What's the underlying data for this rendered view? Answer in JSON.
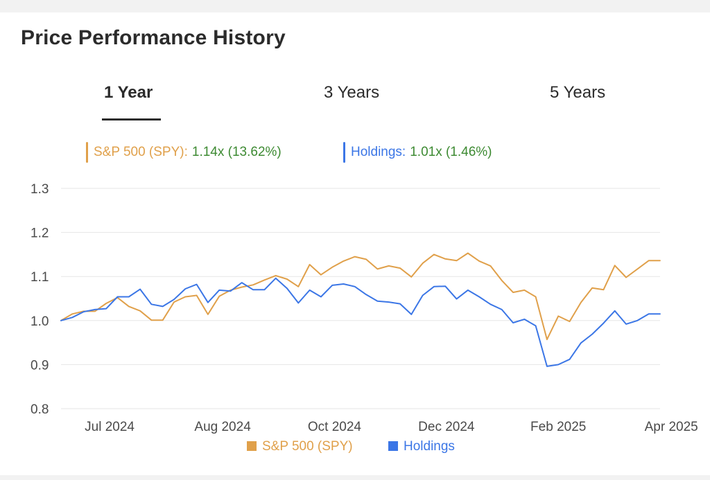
{
  "page": {
    "title": "Price Performance History"
  },
  "tabs": [
    {
      "label": "1 Year",
      "active": true
    },
    {
      "label": "3 Years",
      "active": false
    },
    {
      "label": "5 Years",
      "active": false
    }
  ],
  "summary": {
    "spy": {
      "label": "S&P 500 (SPY):",
      "value": "1.14x (13.62%)"
    },
    "holdings": {
      "label": "Holdings:",
      "value": "1.01x (1.46%)"
    }
  },
  "legend": {
    "spy": "S&P 500 (SPY)",
    "holdings": "Holdings"
  },
  "colors": {
    "spy": "#e0a04a",
    "holdings": "#3b76e6",
    "value_green": "#3d8a32",
    "grid": "#e6e6e6",
    "axis_text": "#4a4a4a"
  },
  "chart_data": {
    "type": "line",
    "title": "Price Performance History",
    "xlabel": "",
    "ylabel": "",
    "ylim": [
      0.8,
      1.3
    ],
    "yticks": [
      "1.3",
      "1.2",
      "1.1",
      "1.0",
      "0.9",
      "0.8"
    ],
    "ytick_values": [
      1.3,
      1.2,
      1.1,
      1.0,
      0.9,
      0.8
    ],
    "xlim": [
      0,
      64
    ],
    "xticks": [
      {
        "label": "Jul 2024",
        "x": 4.3
      },
      {
        "label": "Aug 2024",
        "x": 14.3
      },
      {
        "label": "Oct 2024",
        "x": 24.2
      },
      {
        "label": "Dec 2024",
        "x": 34.1
      },
      {
        "label": "Feb 2025",
        "x": 44.0
      },
      {
        "label": "Apr 2025",
        "x": 54.0
      }
    ],
    "legend_position": "bottom",
    "series": [
      {
        "name": "S&P 500 (SPY)",
        "key": "spy",
        "values": [
          1.0,
          1.015,
          1.021,
          1.021,
          1.039,
          1.052,
          1.032,
          1.022,
          1.001,
          1.001,
          1.042,
          1.054,
          1.057,
          1.014,
          1.055,
          1.069,
          1.076,
          1.081,
          1.092,
          1.102,
          1.094,
          1.077,
          1.127,
          1.104,
          1.121,
          1.135,
          1.145,
          1.139,
          1.117,
          1.124,
          1.119,
          1.099,
          1.13,
          1.15,
          1.14,
          1.136,
          1.153,
          1.135,
          1.124,
          1.091,
          1.064,
          1.069,
          1.054,
          0.957,
          1.01,
          0.998,
          1.041,
          1.074,
          1.07,
          1.125,
          1.098,
          1.117,
          1.136,
          1.136
        ]
      },
      {
        "name": "Holdings",
        "key": "holdings",
        "values": [
          1.0,
          1.007,
          1.02,
          1.025,
          1.027,
          1.054,
          1.054,
          1.071,
          1.037,
          1.032,
          1.048,
          1.072,
          1.082,
          1.041,
          1.069,
          1.067,
          1.086,
          1.07,
          1.07,
          1.096,
          1.073,
          1.04,
          1.069,
          1.054,
          1.08,
          1.083,
          1.077,
          1.059,
          1.044,
          1.042,
          1.038,
          1.014,
          1.057,
          1.077,
          1.078,
          1.049,
          1.069,
          1.054,
          1.037,
          1.025,
          0.995,
          1.003,
          0.988,
          0.896,
          0.9,
          0.912,
          0.949,
          0.969,
          0.994,
          1.022,
          0.992,
          1.0,
          1.015,
          1.015
        ]
      }
    ]
  }
}
